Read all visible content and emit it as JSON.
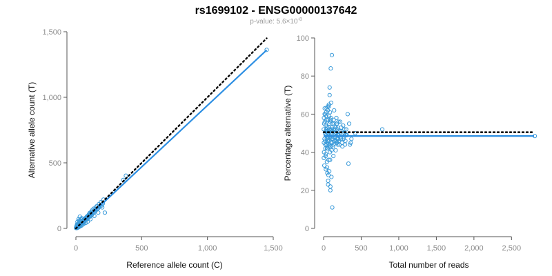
{
  "title": "rs1699102 - ENSG00000137642",
  "subtitle": {
    "prefix": "p-value: 5.6×10",
    "exponent": "-8"
  },
  "colors": {
    "points": "#3a9ad9",
    "fit_line": "#2d8fe3",
    "reference_line": "#000000"
  },
  "chart_data": [
    {
      "type": "scatter",
      "title": "",
      "xlabel": "Reference allele count (C)",
      "ylabel": "Alternative allele count (T)",
      "xlim": [
        0,
        1500
      ],
      "ylim": [
        0,
        1500
      ],
      "xticks": [
        0,
        500,
        1000,
        1500
      ],
      "xtick_labels": [
        "0",
        "500",
        "1,000",
        "1,500"
      ],
      "yticks": [
        0,
        500,
        1000,
        1500
      ],
      "ytick_labels": [
        "0",
        "500",
        "1,000",
        "1,500"
      ],
      "grid": false,
      "reference_line": {
        "style": "dotted",
        "color": "#000000",
        "x": [
          0,
          1450
        ],
        "y": [
          0,
          1450
        ]
      },
      "fit_line": {
        "color": "#2d8fe3",
        "x": [
          0,
          1450
        ],
        "y": [
          0,
          1360
        ]
      },
      "points": [
        [
          1450,
          1362
        ],
        [
          380,
          402
        ],
        [
          360,
          370
        ],
        [
          210,
          220
        ],
        [
          190,
          200
        ],
        [
          175,
          185
        ],
        [
          165,
          150
        ],
        [
          160,
          170
        ],
        [
          150,
          160
        ],
        [
          145,
          140
        ],
        [
          135,
          150
        ],
        [
          130,
          120
        ],
        [
          125,
          130
        ],
        [
          120,
          128
        ],
        [
          115,
          110
        ],
        [
          110,
          112
        ],
        [
          105,
          95
        ],
        [
          100,
          108
        ],
        [
          98,
          105
        ],
        [
          95,
          90
        ],
        [
          92,
          88
        ],
        [
          90,
          95
        ],
        [
          88,
          80
        ],
        [
          85,
          92
        ],
        [
          82,
          78
        ],
        [
          80,
          86
        ],
        [
          78,
          75
        ],
        [
          75,
          80
        ],
        [
          72,
          70
        ],
        [
          70,
          76
        ],
        [
          68,
          66
        ],
        [
          65,
          72
        ],
        [
          62,
          60
        ],
        [
          60,
          66
        ],
        [
          58,
          56
        ],
        [
          55,
          62
        ],
        [
          52,
          50
        ],
        [
          50,
          55
        ],
        [
          48,
          46
        ],
        [
          46,
          52
        ],
        [
          45,
          44
        ],
        [
          42,
          48
        ],
        [
          40,
          38
        ],
        [
          38,
          44
        ],
        [
          36,
          35
        ],
        [
          35,
          40
        ],
        [
          33,
          30
        ],
        [
          32,
          36
        ],
        [
          30,
          28
        ],
        [
          28,
          33
        ],
        [
          27,
          25
        ],
        [
          25,
          30
        ],
        [
          24,
          22
        ],
        [
          22,
          27
        ],
        [
          21,
          20
        ],
        [
          20,
          24
        ],
        [
          19,
          18
        ],
        [
          18,
          21
        ],
        [
          17,
          16
        ],
        [
          16,
          19
        ],
        [
          15,
          14
        ],
        [
          14,
          17
        ],
        [
          13,
          12
        ],
        [
          12,
          15
        ],
        [
          11,
          10
        ],
        [
          10,
          13
        ],
        [
          9,
          8
        ],
        [
          8,
          11
        ],
        [
          7,
          7
        ],
        [
          6,
          9
        ],
        [
          5,
          5
        ],
        [
          4,
          7
        ],
        [
          3,
          4
        ],
        [
          2,
          5
        ],
        [
          3,
          8
        ],
        [
          5,
          10
        ],
        [
          8,
          15
        ],
        [
          12,
          22
        ],
        [
          16,
          28
        ],
        [
          20,
          38
        ],
        [
          25,
          45
        ],
        [
          30,
          55
        ],
        [
          35,
          60
        ],
        [
          40,
          70
        ],
        [
          45,
          78
        ],
        [
          10,
          20
        ],
        [
          14,
          25
        ],
        [
          18,
          30
        ],
        [
          22,
          35
        ],
        [
          26,
          42
        ],
        [
          30,
          48
        ],
        [
          34,
          52
        ],
        [
          38,
          58
        ],
        [
          6,
          12
        ],
        [
          9,
          18
        ],
        [
          12,
          26
        ],
        [
          15,
          32
        ],
        [
          70,
          60
        ],
        [
          60,
          48
        ],
        [
          55,
          44
        ],
        [
          50,
          40
        ],
        [
          90,
          75
        ],
        [
          100,
          85
        ],
        [
          110,
          95
        ],
        [
          120,
          100
        ],
        [
          130,
          115
        ],
        [
          140,
          125
        ],
        [
          150,
          135
        ],
        [
          160,
          145
        ],
        [
          170,
          155
        ],
        [
          180,
          165
        ],
        [
          195,
          175
        ],
        [
          205,
          190
        ],
        [
          85,
          70
        ],
        [
          95,
          80
        ],
        [
          220,
          120
        ],
        [
          200,
          160
        ],
        [
          105,
          118
        ],
        [
          115,
          125
        ],
        [
          125,
          140
        ],
        [
          30,
          90
        ],
        [
          20,
          70
        ],
        [
          12,
          50
        ],
        [
          25,
          60
        ],
        [
          8,
          30
        ],
        [
          5,
          18
        ],
        [
          4,
          12
        ],
        [
          3,
          9
        ],
        [
          2,
          6
        ],
        [
          1,
          3
        ],
        [
          6,
          2
        ],
        [
          10,
          4
        ],
        [
          15,
          6
        ],
        [
          20,
          8
        ],
        [
          25,
          12
        ],
        [
          30,
          15
        ],
        [
          40,
          20
        ],
        [
          50,
          28
        ],
        [
          60,
          35
        ],
        [
          75,
          42
        ],
        [
          90,
          52
        ],
        [
          110,
          70
        ],
        [
          140,
          95
        ],
        [
          170,
          120
        ],
        [
          17,
          24
        ],
        [
          23,
          29
        ],
        [
          29,
          33
        ],
        [
          33,
          27
        ],
        [
          37,
          31
        ],
        [
          43,
          39
        ],
        [
          47,
          41
        ],
        [
          53,
          49
        ],
        [
          57,
          53
        ],
        [
          63,
          59
        ],
        [
          67,
          63
        ],
        [
          73,
          67
        ],
        [
          77,
          71
        ],
        [
          83,
          77
        ],
        [
          87,
          81
        ],
        [
          93,
          87
        ]
      ]
    },
    {
      "type": "scatter",
      "title": "",
      "xlabel": "Total number of reads",
      "ylabel": "Percentage alternative (T)",
      "xlim": [
        0,
        2800
      ],
      "ylim": [
        0,
        100
      ],
      "xticks": [
        0,
        500,
        1000,
        1500,
        2000,
        2500
      ],
      "xtick_labels": [
        "0",
        "500",
        "1,000",
        "1,500",
        "2,000",
        "2,500"
      ],
      "yticks": [
        0,
        20,
        40,
        60,
        80,
        100
      ],
      "ytick_labels": [
        "0",
        "20",
        "40",
        "60",
        "80",
        "100"
      ],
      "grid": false,
      "reference_line": {
        "style": "dotted",
        "color": "#000000",
        "x": [
          0,
          2800
        ],
        "y": [
          50.5,
          50.5
        ]
      },
      "fit_line": {
        "color": "#2d8fe3",
        "x": [
          0,
          2800
        ],
        "y": [
          48.5,
          48.5
        ]
      },
      "points": [
        [
          2810,
          48.5
        ],
        [
          780,
          52
        ],
        [
          420,
          50
        ],
        [
          370,
          47
        ],
        [
          360,
          45
        ],
        [
          350,
          44
        ],
        [
          340,
          55
        ],
        [
          330,
          34
        ],
        [
          320,
          60
        ],
        [
          310,
          49
        ],
        [
          300,
          52
        ],
        [
          290,
          46
        ],
        [
          280,
          50
        ],
        [
          270,
          48
        ],
        [
          260,
          54
        ],
        [
          250,
          43
        ],
        [
          240,
          51
        ],
        [
          230,
          47
        ],
        [
          220,
          56
        ],
        [
          210,
          44
        ],
        [
          200,
          49
        ],
        [
          190,
          53
        ],
        [
          180,
          45
        ],
        [
          170,
          58
        ],
        [
          160,
          41
        ],
        [
          150,
          50
        ],
        [
          140,
          62
        ],
        [
          130,
          38
        ],
        [
          120,
          55
        ],
        [
          115,
          11
        ],
        [
          110,
          91
        ],
        [
          105,
          47
        ],
        [
          100,
          52
        ],
        [
          95,
          84
        ],
        [
          90,
          22
        ],
        [
          85,
          61
        ],
        [
          80,
          74
        ],
        [
          75,
          30
        ],
        [
          70,
          65
        ],
        [
          65,
          36
        ],
        [
          60,
          57
        ],
        [
          55,
          42
        ],
        [
          50,
          48
        ],
        [
          45,
          53
        ],
        [
          40,
          44
        ],
        [
          35,
          59
        ],
        [
          30,
          39
        ],
        [
          25,
          51
        ],
        [
          20,
          46
        ],
        [
          15,
          63
        ],
        [
          10,
          33
        ],
        [
          8,
          55
        ],
        [
          6,
          40
        ],
        [
          5,
          58
        ],
        [
          4,
          45
        ],
        [
          3,
          37
        ],
        [
          2,
          52
        ],
        [
          12,
          47
        ],
        [
          18,
          50
        ],
        [
          22,
          44
        ],
        [
          28,
          54
        ],
        [
          32,
          49
        ],
        [
          38,
          52
        ],
        [
          42,
          47
        ],
        [
          48,
          51
        ],
        [
          52,
          45
        ],
        [
          58,
          50
        ],
        [
          62,
          48
        ],
        [
          68,
          53
        ],
        [
          72,
          46
        ],
        [
          78,
          49
        ],
        [
          82,
          44
        ],
        [
          88,
          56
        ],
        [
          92,
          43
        ],
        [
          98,
          50
        ],
        [
          102,
          48
        ],
        [
          108,
          53
        ],
        [
          112,
          45
        ],
        [
          118,
          51
        ],
        [
          122,
          47
        ],
        [
          128,
          52
        ],
        [
          132,
          44
        ],
        [
          138,
          49
        ],
        [
          142,
          55
        ],
        [
          148,
          46
        ],
        [
          152,
          50
        ],
        [
          158,
          48
        ],
        [
          162,
          53
        ],
        [
          168,
          45
        ],
        [
          172,
          50
        ],
        [
          178,
          47
        ],
        [
          182,
          52
        ],
        [
          188,
          44
        ],
        [
          192,
          49
        ],
        [
          198,
          56
        ],
        [
          205,
          46
        ],
        [
          215,
          51
        ],
        [
          225,
          48
        ],
        [
          235,
          53
        ],
        [
          245,
          45
        ],
        [
          255,
          50
        ],
        [
          265,
          47
        ],
        [
          275,
          52
        ],
        [
          285,
          44
        ],
        [
          295,
          49
        ],
        [
          14,
          60
        ],
        [
          24,
          42
        ],
        [
          34,
          61
        ],
        [
          44,
          35
        ],
        [
          54,
          64
        ],
        [
          64,
          28
        ],
        [
          74,
          59
        ],
        [
          84,
          40
        ],
        [
          94,
          57
        ],
        [
          104,
          27
        ],
        [
          16,
          56
        ],
        [
          26,
          38
        ],
        [
          36,
          57
        ],
        [
          46,
          32
        ],
        [
          56,
          62
        ],
        [
          66,
          43
        ],
        [
          76,
          55
        ],
        [
          86,
          36
        ],
        [
          96,
          58
        ],
        [
          106,
          41
        ],
        [
          60,
          25
        ],
        [
          80,
          70
        ],
        [
          100,
          66
        ],
        [
          50,
          29
        ],
        [
          70,
          64
        ],
        [
          40,
          63
        ],
        [
          30,
          31
        ],
        [
          20,
          60
        ],
        [
          45,
          42
        ],
        [
          55,
          46
        ],
        [
          65,
          50
        ],
        [
          75,
          52
        ],
        [
          85,
          48
        ],
        [
          95,
          45
        ],
        [
          105,
          51
        ],
        [
          125,
          43
        ],
        [
          135,
          57
        ],
        [
          145,
          48
        ],
        [
          155,
          52
        ],
        [
          165,
          46
        ],
        [
          175,
          55
        ],
        [
          185,
          49
        ],
        [
          195,
          47
        ],
        [
          60,
          23
        ],
        [
          90,
          20
        ]
      ]
    }
  ]
}
